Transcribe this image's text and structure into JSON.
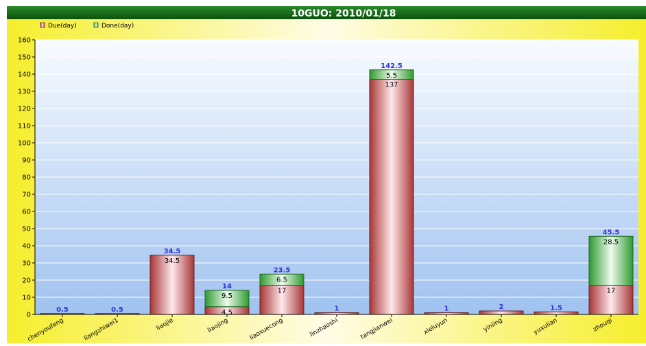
{
  "chart_data": {
    "type": "bar",
    "stacked": true,
    "title": "10GUO: 2010/01/18",
    "xlabel": "",
    "ylabel": "",
    "ylim": [
      0,
      160
    ],
    "yticks": [
      0,
      10,
      20,
      30,
      40,
      50,
      60,
      70,
      80,
      90,
      100,
      110,
      120,
      130,
      140,
      150,
      160
    ],
    "grid": true,
    "legend_position": "top-left",
    "categories": [
      "chenyoufeng",
      "liangzhiwei1",
      "liaojie",
      "liaojing",
      "liaoxuecong",
      "linzhaoshi",
      "tangjianwei",
      "xieluyun",
      "yiniing",
      "yuxulian",
      "zhouqi"
    ],
    "series": [
      {
        "name": "Due(day)",
        "values": [
          0.5,
          0.5,
          34.5,
          4.5,
          17,
          1,
          137,
          1,
          2,
          1.5,
          17
        ],
        "color": "#b84a4a"
      },
      {
        "name": "Done(day)",
        "values": [
          0,
          0,
          0,
          9.5,
          6.5,
          0,
          5.5,
          0,
          0,
          0,
          28.5
        ],
        "color": "#3ea03e"
      }
    ],
    "segment_labels": {
      "Due(day)": [
        "",
        "",
        "34.5",
        "4.5",
        "17",
        "",
        "137",
        "",
        "",
        "",
        "17"
      ],
      "Done(day)": [
        "",
        "",
        "",
        "9.5",
        "6.5",
        "",
        "5.5",
        "",
        "",
        "",
        "28.5"
      ]
    },
    "totals": [
      "0.5",
      "0.5",
      "34.5",
      "14",
      "23.5",
      "1",
      "142.5",
      "1",
      "2",
      "1.5",
      "45.5"
    ],
    "colors": {
      "title_bg": "#116611",
      "title_text": "#ffffff",
      "total_label": "#3333dd",
      "outer_bg": "#f5f035",
      "plot_top": "#f8fbff",
      "plot_bottom": "#a4c6f2"
    }
  }
}
